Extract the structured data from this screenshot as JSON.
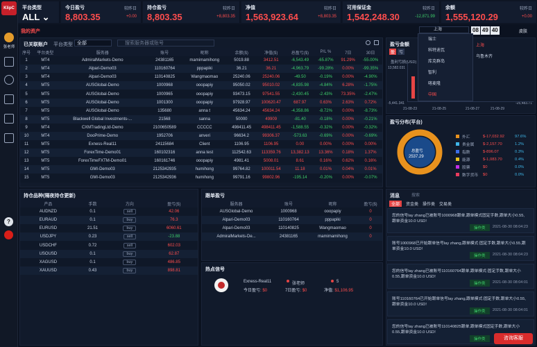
{
  "app": {
    "logo": "KlipC",
    "user": "张老师"
  },
  "stats": [
    {
      "label": "平台类型",
      "value": "ALL ⌄",
      "rt": "",
      "rb": ""
    },
    {
      "label": "今日盈亏",
      "value": "8,803.35",
      "rt": "较昨日",
      "rb": "+0.00"
    },
    {
      "label": "持仓盈亏",
      "value": "8,803.35",
      "rt": "较昨日",
      "rb": "+8,803.35"
    },
    {
      "label": "净值",
      "value": "1,563,923.64",
      "rt": "较昨日",
      "rb": "+8,803.35"
    },
    {
      "label": "可用保证金",
      "value": "1,542,248.30",
      "rt": "较昨日",
      "rb": "-12,871.99"
    },
    {
      "label": "余额",
      "value": "1,555,120.29",
      "rt": "较昨日",
      "rb": "+0.00"
    }
  ],
  "assets_title": "我的资产",
  "linked": {
    "title": "已关联账户",
    "platform_label": "平台类型",
    "platform_value": "全部",
    "search_placeholder": "搜索服务器或账号",
    "headers": [
      "序号",
      "平台类型",
      "服务器",
      "账号",
      "昵称",
      "余额($)",
      "净值($)",
      "总盈亏($)",
      "P/L %",
      "7日",
      "30日"
    ],
    "rows": [
      [
        "1",
        "MT4",
        "AdmiralMarkets-Demo",
        "24381165",
        "mamimamihong",
        "5019.88",
        "3412.51",
        "-6,543.49",
        "-65.87%",
        "91.29%",
        "-55.00%"
      ],
      [
        "2",
        "MT4",
        "Alpari-Demo03",
        "110160764",
        "pppapiki",
        "36.21",
        "36.21",
        "-4,963.79",
        "-99.28%",
        "0.00%",
        "-99.35%"
      ],
      [
        "3",
        "MT4",
        "Alpari-Demo03",
        "110140825",
        "Wangmaomao",
        "25240.06",
        "25240.06",
        "-49.50",
        "-0.19%",
        "0.00%",
        "-4.90%"
      ],
      [
        "4",
        "MT5",
        "AUSGlobal-Demo",
        "1000968",
        "ooopapiy",
        "95050.02",
        "95010.02",
        "-4,835.98",
        "-4.84%",
        "6.28%",
        "-1.75%"
      ],
      [
        "5",
        "MT5",
        "AUSGlobal-Demo",
        "1000965",
        "ooopapiy",
        "93473.15",
        "97541.55",
        "-2,430.45",
        "-2.43%",
        "73.35%",
        "-2.47%"
      ],
      [
        "6",
        "MT5",
        "AUSGlobal-Demo",
        "1001300",
        "ooopapiy",
        "97928.97",
        "100620.47",
        "687.97",
        "0.63%",
        "2.63%",
        "0.72%"
      ],
      [
        "7",
        "MT5",
        "AUSGlobal-Demo",
        "135680",
        "anna t",
        "45634.24",
        "45634.24",
        "-4,358.86",
        "-8.72%",
        "0.00%",
        "-8.73%"
      ],
      [
        "8",
        "MT5",
        "Blackwell Global Investments-...",
        "21568",
        "sanna",
        "50000",
        "49909",
        "-81.40",
        "-0.18%",
        "0.00%",
        "-0.21%"
      ],
      [
        "9",
        "MT4",
        "CXMTradingLtd-Demo",
        "2100650589",
        "CCCCC",
        "498411.45",
        "498411.45",
        "-1,588.55",
        "-0.32%",
        "0.00%",
        "-0.32%"
      ],
      [
        "10",
        "MT4",
        "DooPrime-Demo",
        "1952706",
        "anveri",
        "96634.2",
        "99306.37",
        "-573.63",
        "-0.69%",
        "0.00%",
        "-0.69%"
      ],
      [
        "11",
        "MT5",
        "Exness-Real11",
        "24115684",
        "Client",
        "1106.95",
        "1106.95",
        "0.00",
        "0.00%",
        "0.00%",
        "0.00%"
      ],
      [
        "12",
        "MT5",
        "ForexTime-Demo01",
        "160102316",
        "anna test",
        "112542.63",
        "113359.76",
        "13,382.13",
        "13.36%",
        "0.18%",
        "1.37%"
      ],
      [
        "13",
        "MT5",
        "ForexTimeFXTM-Demo01",
        "160161746",
        "ooopapiy",
        "4981.41",
        "5008.01",
        "8.61",
        "0.16%",
        "0.62%",
        "0.16%"
      ],
      [
        "14",
        "MT5",
        "GMI-Demo03",
        "2125342935",
        "humihong",
        "99764.82",
        "100011.54",
        "11.18",
        "0.01%",
        "0.04%",
        "0.01%"
      ],
      [
        "15",
        "MT5",
        "GMI-Demo03",
        "2125342936",
        "humihong",
        "99791.16",
        "99802.96",
        "-195.14",
        "-0.20%",
        "0.00%",
        "-0.07%"
      ]
    ]
  },
  "pnl": {
    "title": "盈亏金额",
    "tabs": [
      "盈",
      "亏"
    ],
    "ylab": "盈利亏损(USD)",
    "yticks": [
      "13,582.031",
      "-5,441.341"
    ],
    "ymin": "-25,483.71",
    "xticks": [
      "21-08-23",
      "21-08-25",
      "21-08-27",
      "21-08-29"
    ],
    "city_title": "上海"
  },
  "cities": [
    "瑞士",
    "科特迪瓦",
    "库克群岛",
    "智利",
    "喀麦隆",
    "中国"
  ],
  "city_sub": [
    "上海",
    "乌鲁木齐"
  ],
  "clock": [
    "08",
    "49",
    "40"
  ],
  "skin": "皮肤",
  "platform_pnl": {
    "title": "盈亏分布(平台)",
    "center_label": "总盈亏",
    "center_value": "2537.29",
    "legend": [
      {
        "name": "外汇",
        "value": "$-17,032.92",
        "pct": "97.6%",
        "color": "#e8921e"
      },
      {
        "name": "贵金属",
        "value": "$-2,157.70",
        "pct": "1.2%",
        "color": "#3fb6e8"
      },
      {
        "name": "指数",
        "value": "$-896.07",
        "pct": "0.3%",
        "color": "#3b6ee8"
      },
      {
        "name": "能源",
        "value": "$-1,083.70",
        "pct": "0.4%",
        "color": "#e8c31e"
      },
      {
        "name": "股票",
        "value": "$0",
        "pct": "0.0%",
        "color": "#c22ee8"
      },
      {
        "name": "数字货币",
        "value": "$0",
        "pct": "0.0%",
        "color": "#e83b5e"
      }
    ]
  },
  "positions": {
    "title": "持仓品种(隔夜持仓更新)",
    "headers": [
      "产品",
      "手数",
      "方向",
      "盈亏($)"
    ],
    "rows": [
      [
        "AUDNZD",
        "0.1",
        "sell",
        "42.06"
      ],
      [
        "EURAUD",
        "0.1",
        "buy",
        "76.3"
      ],
      [
        "EURUSD",
        "21.51",
        "buy",
        "6060.61"
      ],
      [
        "USDJPY",
        "0.23",
        "sell",
        "-23.88"
      ],
      [
        "USDCHF",
        "0.72",
        "sell",
        "602.03"
      ],
      [
        "USOUSD",
        "0.1",
        "buy",
        "62.87"
      ],
      [
        "XAGUSD",
        "0.1",
        "buy",
        "486.85"
      ],
      [
        "XAUUSD",
        "0.43",
        "buy",
        "898.81"
      ]
    ]
  },
  "orders": {
    "title": "跟单盈亏",
    "headers": [
      "服务器",
      "账号",
      "昵称",
      "盈亏($)"
    ],
    "rows": [
      [
        "AUSGlobal-Demo",
        "1000968",
        "ooopapiy",
        "0"
      ],
      [
        "Alpari-Demo03",
        "110160764",
        "pppapiki",
        "0"
      ],
      [
        "Alpari-Demo03",
        "110140825",
        "Wangmaomao",
        "0"
      ],
      [
        "AdmiralMarkets-De...",
        "24381165",
        "mamimamihong",
        "0"
      ]
    ]
  },
  "hot": {
    "title": "热点信号",
    "server": "Exness-Real11",
    "user": "张老师",
    "fans": "5",
    "today_label": "今日盈亏:",
    "today_val": "$0",
    "week_label": "7日盈亏:",
    "week_val": "$0",
    "net_label": "净值:",
    "net_val": "$1,106.95"
  },
  "messages": {
    "title": "消息",
    "search": "搜索",
    "filters": [
      "全部",
      "资金类",
      "操作类",
      "交易类"
    ],
    "items": [
      {
        "text": "您的信号lay zhang已被账号1000968跟单,跟单模式固定手数,跟单大小0.55,跟单资金10.0 USD!",
        "op": "操作类",
        "time": "2021-08-30 08:04:23"
      },
      {
        "text": "账号1000968已开始跟单信号lay zhang,跟单模式:固定手数,跟单大小0.55,跟单资金10.0 USD!",
        "op": "操作类",
        "time": "2021-08-30 08:04:23"
      },
      {
        "text": "您的信号lay zhang已被账号110160764跟单,跟单模式:固定手数,跟单大小0.55,跟单资金10.0 USD!",
        "op": "操作类",
        "time": "2021-08-30 08:04:01"
      },
      {
        "text": "账号110160764已开始跟单信号lay zhang,跟单模式:固定手数,跟单大小0.55,跟单资金10.0 USD!",
        "op": "操作类",
        "time": "2021-08-30 08:04:01"
      },
      {
        "text": "您的信号lay zhang已被账号110140825跟单,跟单模式固定手数,跟单大小0.55,跟单资金10.0 USD!",
        "op": "操作类",
        "time": ""
      }
    ]
  },
  "service": "咨询客服"
}
